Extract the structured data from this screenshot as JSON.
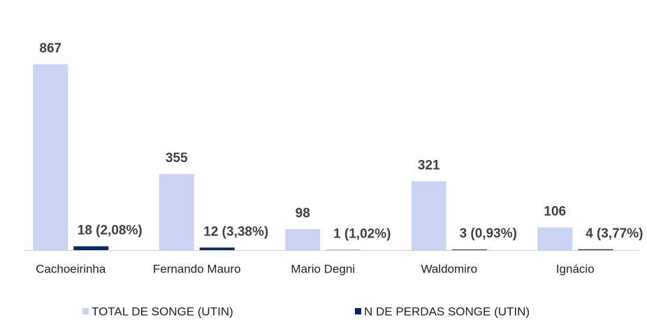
{
  "chart_data": {
    "type": "bar",
    "categories": [
      "Cachoeirinha",
      "Fernando Mauro",
      "Mario Degni",
      "Waldomiro",
      "Ignácio"
    ],
    "series": [
      {
        "name": "TOTAL DE SONGE (UTIN)",
        "color": "#c9d3f3",
        "values": [
          867,
          355,
          98,
          321,
          106
        ]
      },
      {
        "name": "N DE PERDAS SONGE (UTIN)",
        "color": "#0c2766",
        "values": [
          18,
          12,
          1,
          3,
          4
        ],
        "value_labels": [
          "18 (2,08%)",
          "12 (3,38%)",
          "1 (1,02%)",
          "3 (0,93%)",
          "4 (3,77%)"
        ]
      }
    ],
    "legend": "bottom"
  }
}
